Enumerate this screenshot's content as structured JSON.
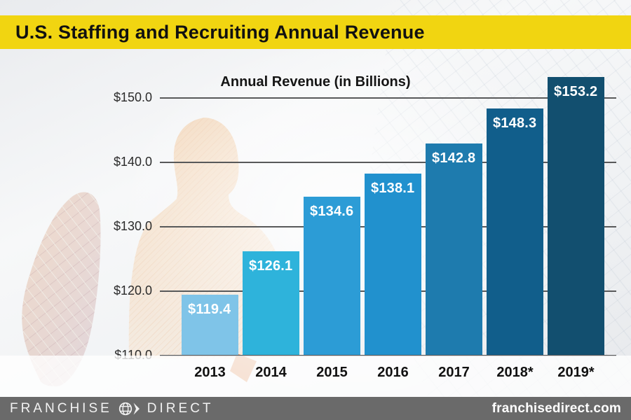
{
  "banner": {
    "title": "U.S. Staffing and Recruiting Annual Revenue"
  },
  "chart_data": {
    "type": "bar",
    "title": "Annual Revenue (in Billions)",
    "categories": [
      "2013",
      "2014",
      "2015",
      "2016",
      "2017",
      "2018*",
      "2019*"
    ],
    "values": [
      119.4,
      126.1,
      134.6,
      138.1,
      142.8,
      148.3,
      153.2
    ],
    "value_labels": [
      "$119.4",
      "$126.1",
      "$134.6",
      "$138.1",
      "$142.8",
      "$148.3",
      "$153.2"
    ],
    "bar_colors": [
      "#7FC4E8",
      "#2EB3DB",
      "#2C9CD6",
      "#2191CE",
      "#1E7BAE",
      "#115E8B",
      "#124F6F"
    ],
    "y_axis": {
      "ticks": [
        {
          "label": "$150.0",
          "value": 150
        },
        {
          "label": "$140.0",
          "value": 140
        },
        {
          "label": "$130.0",
          "value": 130
        },
        {
          "label": "$120.0",
          "value": 120
        },
        {
          "label": "$110.0",
          "value": 110
        }
      ],
      "min": 110,
      "max": 155
    },
    "grid": true,
    "legend": "none"
  },
  "footer": {
    "brand_left": "FRANCHISE",
    "brand_right": "DIRECT",
    "website": "franchisedirect.com"
  },
  "colors": {
    "banner_bg": "#F1D511",
    "banner_text": "#111111",
    "bar_label_text": "#FFFFFF",
    "gridline": "#58595A",
    "footer_bg": "#6A6A6A",
    "footer_text": "#FFFFFF"
  }
}
